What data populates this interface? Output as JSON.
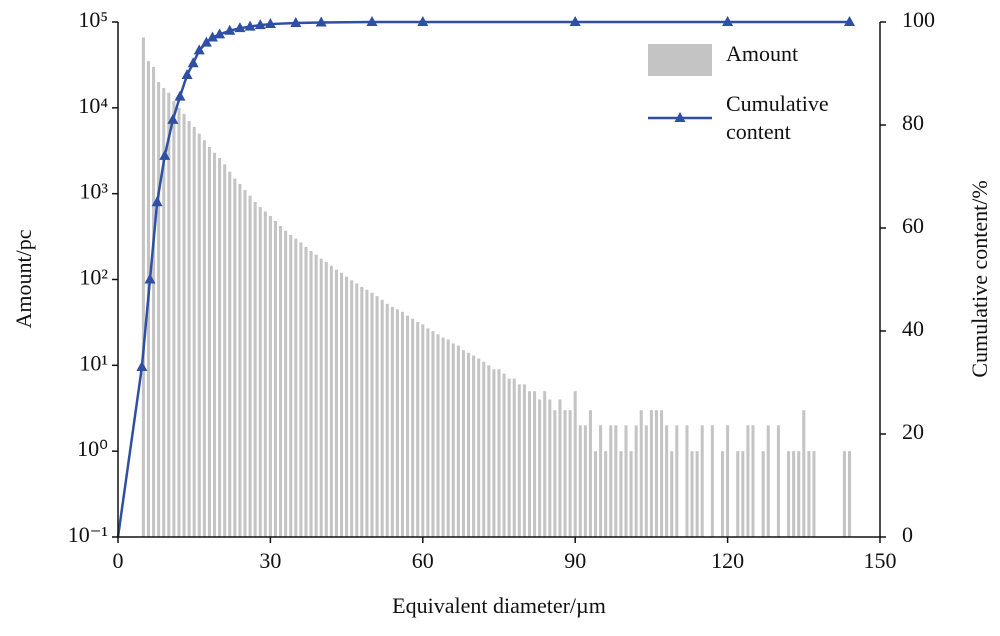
{
  "chart_data": {
    "type": "bar",
    "xlabel": "Equivalent diameter/µm",
    "ylabel": "Amount/pc",
    "y2label": "Cumulative content/%",
    "xlim": [
      0,
      150
    ],
    "xticks": [
      0,
      30,
      60,
      90,
      120,
      150
    ],
    "ylim": [
      0.1,
      100000
    ],
    "ylog": true,
    "yticks": [
      {
        "value": 0.1,
        "label": "10⁻¹"
      },
      {
        "value": 1,
        "label": "10⁰"
      },
      {
        "value": 10,
        "label": "10¹"
      },
      {
        "value": 100,
        "label": "10²"
      },
      {
        "value": 1000,
        "label": "10³"
      },
      {
        "value": 10000,
        "label": "10⁴"
      },
      {
        "value": 100000,
        "label": "10⁵"
      }
    ],
    "y2lim": [
      0,
      100
    ],
    "y2ticks": [
      0,
      20,
      40,
      60,
      80,
      100
    ],
    "legend": "upper right",
    "series": [
      {
        "name": "Amount",
        "color": "#c4c4c4",
        "x": [
          5,
          6,
          7,
          8,
          9,
          10,
          11,
          12,
          13,
          14,
          15,
          16,
          17,
          18,
          19,
          20,
          21,
          22,
          23,
          24,
          25,
          26,
          27,
          28,
          29,
          30,
          31,
          32,
          33,
          34,
          35,
          36,
          37,
          38,
          39,
          40,
          41,
          42,
          43,
          44,
          45,
          46,
          47,
          48,
          49,
          50,
          51,
          52,
          53,
          54,
          55,
          56,
          57,
          58,
          59,
          60,
          61,
          62,
          63,
          64,
          65,
          66,
          67,
          68,
          69,
          70,
          71,
          72,
          73,
          74,
          75,
          76,
          77,
          78,
          79,
          80,
          81,
          82,
          83,
          84,
          85,
          86,
          87,
          88,
          89,
          90,
          91,
          92,
          93,
          94,
          95,
          96,
          97,
          98,
          99,
          100,
          101,
          102,
          103,
          104,
          105,
          106,
          107,
          108,
          109,
          110,
          111,
          112,
          113,
          114,
          115,
          116,
          117,
          118,
          119,
          120,
          121,
          122,
          123,
          124,
          125,
          126,
          127,
          128,
          129,
          130,
          131,
          132,
          133,
          134,
          135,
          136,
          137,
          138,
          139,
          140,
          141,
          142,
          143,
          144
        ],
        "values": [
          66000,
          35000,
          30000,
          20000,
          17000,
          15000,
          12000,
          10000,
          8500,
          7000,
          6000,
          5000,
          4200,
          3500,
          3000,
          2600,
          2200,
          1800,
          1500,
          1300,
          1100,
          950,
          800,
          700,
          620,
          550,
          480,
          420,
          370,
          330,
          300,
          270,
          240,
          215,
          195,
          175,
          160,
          145,
          130,
          120,
          108,
          98,
          90,
          82,
          76,
          70,
          64,
          58,
          52,
          48,
          45,
          42,
          38,
          35,
          32,
          30,
          27,
          25,
          23,
          21,
          20,
          18,
          17,
          15,
          14,
          13,
          12,
          11,
          10,
          9,
          9,
          8,
          7,
          7,
          6,
          6,
          5,
          5,
          4,
          5,
          4,
          3,
          4,
          3,
          3,
          5,
          2,
          2,
          3,
          1,
          2,
          1,
          2,
          2,
          1,
          2,
          1,
          2,
          3,
          2,
          3,
          3,
          3,
          2,
          1,
          2,
          0,
          2,
          1,
          1,
          2,
          0,
          2,
          0,
          1,
          2,
          0,
          1,
          1,
          2,
          2,
          0,
          1,
          2,
          0,
          2,
          0,
          1,
          1,
          1,
          3,
          1,
          1,
          0,
          0,
          0,
          0,
          0,
          1,
          1
        ]
      },
      {
        "name": "Cumulative content",
        "color": "#2e4fa3",
        "axis": "y2",
        "x": [
          0,
          4.7,
          6.3,
          7.7,
          9.2,
          10.8,
          12.2,
          13.6,
          14.8,
          16,
          17.4,
          18.6,
          20,
          22,
          24,
          26,
          28,
          30,
          35,
          40,
          50,
          60,
          90,
          120,
          144
        ],
        "values": [
          0,
          33,
          50,
          65,
          74,
          81,
          85.5,
          89.7,
          92,
          94.5,
          96,
          97,
          97.6,
          98.3,
          98.8,
          99.1,
          99.4,
          99.6,
          99.8,
          99.9,
          100,
          100,
          100,
          100,
          100
        ]
      }
    ]
  }
}
